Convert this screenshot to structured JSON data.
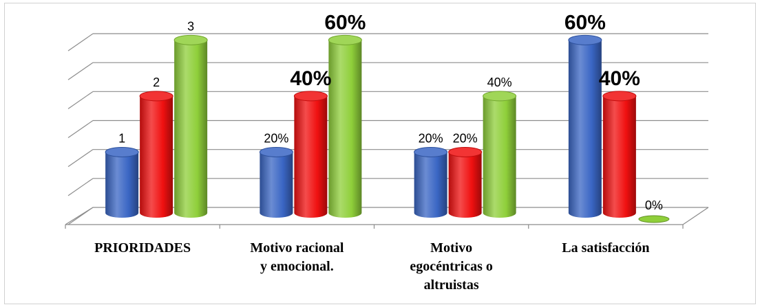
{
  "chart_data": {
    "type": "bar",
    "style": "3d-cylinder",
    "categories": [
      "PRIORIDADES",
      "Motivo racional y emocional.",
      "Motivo egocéntricas o altruistas",
      "La satisfacción"
    ],
    "category_lines": [
      [
        "PRIORIDADES"
      ],
      [
        "Motivo racional",
        "y emocional."
      ],
      [
        "Motivo",
        "egocéntricas o",
        "altruistas"
      ],
      [
        "La satisfacción"
      ]
    ],
    "series": [
      {
        "color": "#3a66c4",
        "values": [
          1,
          1,
          1,
          3
        ]
      },
      {
        "color": "#f01010",
        "values": [
          2,
          2,
          1,
          2
        ]
      },
      {
        "color": "#8fcf3a",
        "values": [
          3,
          3,
          2,
          0
        ]
      }
    ],
    "data_labels": [
      [
        "1",
        "2",
        "3"
      ],
      [
        "20%",
        "40%",
        "60%"
      ],
      [
        "20%",
        "20%",
        "40%"
      ],
      [
        "60%",
        "40%",
        "0%"
      ]
    ],
    "data_label_emphasis": [
      [
        false,
        false,
        false
      ],
      [
        false,
        true,
        true
      ],
      [
        false,
        false,
        false
      ],
      [
        true,
        true,
        false
      ]
    ],
    "ylim": [
      0,
      3.2
    ],
    "grid": true,
    "legend": "none",
    "title": "",
    "xlabel": "",
    "ylabel": ""
  }
}
